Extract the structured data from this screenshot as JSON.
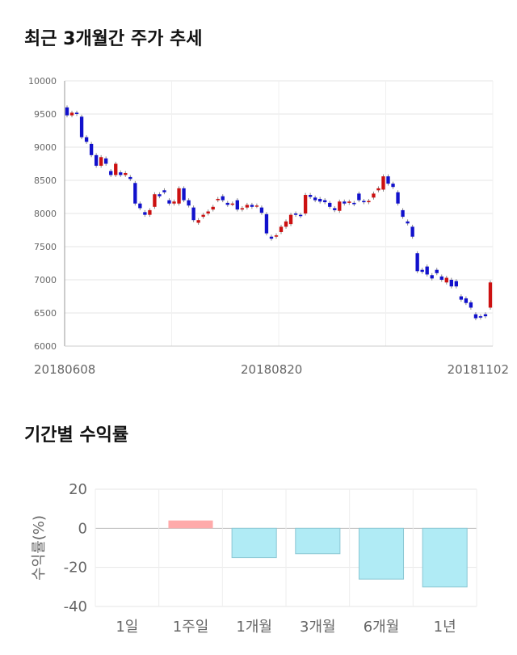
{
  "sections": {
    "price_title": "최근 3개월간 주가 추세",
    "return_title": "기간별 수익률"
  },
  "chart_data": [
    {
      "type": "candlestick",
      "title": "최근 3개월간 주가 추세",
      "ylim": [
        6000,
        10000
      ],
      "y_ticks": [
        6000,
        6500,
        7000,
        7500,
        8000,
        8500,
        9000,
        9500,
        10000
      ],
      "x_tick_labels": [
        "20180608",
        "20180820",
        "20181102"
      ],
      "up_color": "#cc1111",
      "down_color": "#1111cc",
      "grid": true,
      "candles": [
        [
          9600,
          9480
        ],
        [
          9480,
          9520
        ],
        [
          9520,
          9500
        ],
        [
          9460,
          9150
        ],
        [
          9150,
          9080
        ],
        [
          9050,
          8880
        ],
        [
          8880,
          8720
        ],
        [
          8720,
          8850
        ],
        [
          8830,
          8750
        ],
        [
          8640,
          8580
        ],
        [
          8580,
          8750
        ],
        [
          8620,
          8580
        ],
        [
          8580,
          8610
        ],
        [
          8550,
          8520
        ],
        [
          8460,
          8150
        ],
        [
          8150,
          8080
        ],
        [
          8020,
          7980
        ],
        [
          7980,
          8050
        ],
        [
          8100,
          8290
        ],
        [
          8290,
          8260
        ],
        [
          8350,
          8320
        ],
        [
          8200,
          8150
        ],
        [
          8150,
          8180
        ],
        [
          8150,
          8380
        ],
        [
          8380,
          8200
        ],
        [
          8200,
          8120
        ],
        [
          8090,
          7900
        ],
        [
          7860,
          7900
        ],
        [
          7950,
          7980
        ],
        [
          8000,
          8030
        ],
        [
          8060,
          8100
        ],
        [
          8200,
          8220
        ],
        [
          8260,
          8200
        ],
        [
          8160,
          8130
        ],
        [
          8140,
          8150
        ],
        [
          8200,
          8060
        ],
        [
          8060,
          8080
        ],
        [
          8090,
          8130
        ],
        [
          8130,
          8100
        ],
        [
          8110,
          8120
        ],
        [
          8090,
          8010
        ],
        [
          7990,
          7700
        ],
        [
          7650,
          7620
        ],
        [
          7650,
          7670
        ],
        [
          7720,
          7800
        ],
        [
          7800,
          7880
        ],
        [
          7840,
          7980
        ],
        [
          8000,
          7980
        ],
        [
          7980,
          7960
        ],
        [
          8000,
          8280
        ],
        [
          8280,
          8250
        ],
        [
          8240,
          8200
        ],
        [
          8220,
          8180
        ],
        [
          8200,
          8170
        ],
        [
          8160,
          8100
        ],
        [
          8080,
          8050
        ],
        [
          8040,
          8180
        ],
        [
          8180,
          8150
        ],
        [
          8160,
          8180
        ],
        [
          8160,
          8140
        ],
        [
          8300,
          8200
        ],
        [
          8190,
          8170
        ],
        [
          8170,
          8190
        ],
        [
          8240,
          8300
        ],
        [
          8350,
          8380
        ],
        [
          8360,
          8560
        ],
        [
          8560,
          8450
        ],
        [
          8450,
          8400
        ],
        [
          8320,
          8150
        ],
        [
          8050,
          7950
        ],
        [
          7880,
          7850
        ],
        [
          7800,
          7650
        ],
        [
          7400,
          7130
        ],
        [
          7150,
          7120
        ],
        [
          7200,
          7080
        ],
        [
          7070,
          7020
        ],
        [
          7150,
          7100
        ],
        [
          7050,
          7000
        ],
        [
          6960,
          7030
        ],
        [
          7000,
          6900
        ],
        [
          6980,
          6900
        ],
        [
          6750,
          6700
        ],
        [
          6720,
          6650
        ],
        [
          6660,
          6580
        ],
        [
          6480,
          6420
        ],
        [
          6450,
          6430
        ],
        [
          6480,
          6450
        ],
        [
          6580,
          6960
        ]
      ]
    },
    {
      "type": "bar",
      "title": "기간별 수익률",
      "ylabel": "수익률(%)",
      "ylim": [
        -40,
        20
      ],
      "y_ticks": [
        20,
        0,
        -20,
        -40
      ],
      "categories": [
        "1일",
        "1주일",
        "1개월",
        "3개월",
        "6개월",
        "1년"
      ],
      "values": [
        0,
        4,
        -15,
        -13,
        -26,
        -30
      ],
      "positive_color": "#ffaaaa",
      "negative_color": "#b0ebf5",
      "negative_border": "#8cc8d4"
    }
  ]
}
